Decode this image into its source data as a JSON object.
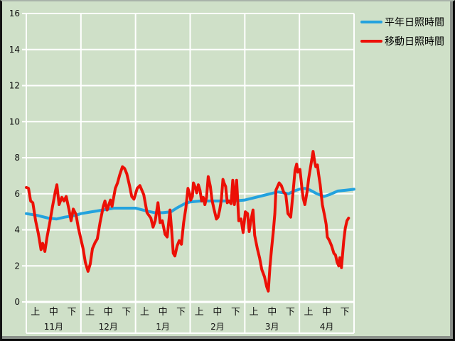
{
  "window_bg": "#cfe0c8",
  "legend": {
    "items": [
      {
        "label": "平年日照時間",
        "color": "#23a2de"
      },
      {
        "label": "移動日照時間",
        "color": "#ec1006"
      }
    ]
  },
  "chart_data": {
    "type": "line",
    "title": "",
    "xlabel": "",
    "ylabel": "",
    "ylim": [
      0,
      16
    ],
    "yticks": [
      0,
      2,
      4,
      6,
      8,
      10,
      12,
      14,
      16
    ],
    "grid": true,
    "gridline_color": "#ffffff",
    "legend_position": "top-right",
    "months": [
      "11月",
      "12月",
      "1月",
      "2月",
      "3月",
      "4月"
    ],
    "period_labels": [
      "上",
      "中",
      "下"
    ],
    "series": [
      {
        "name": "平年日照時間",
        "color": "#23a2de",
        "points": [
          [
            0.0,
            4.9
          ],
          [
            0.2,
            4.8
          ],
          [
            0.4,
            4.65
          ],
          [
            0.55,
            4.6
          ],
          [
            0.7,
            4.7
          ],
          [
            0.9,
            4.8
          ],
          [
            1.0,
            4.9
          ],
          [
            1.2,
            5.0
          ],
          [
            1.4,
            5.1
          ],
          [
            1.6,
            5.2
          ],
          [
            1.8,
            5.2
          ],
          [
            2.0,
            5.2
          ],
          [
            2.2,
            5.05
          ],
          [
            2.35,
            4.95
          ],
          [
            2.5,
            4.95
          ],
          [
            2.65,
            5.0
          ],
          [
            2.75,
            5.2
          ],
          [
            2.9,
            5.45
          ],
          [
            3.0,
            5.55
          ],
          [
            3.2,
            5.6
          ],
          [
            3.5,
            5.6
          ],
          [
            3.8,
            5.6
          ],
          [
            4.0,
            5.65
          ],
          [
            4.2,
            5.8
          ],
          [
            4.4,
            5.95
          ],
          [
            4.6,
            6.1
          ],
          [
            4.72,
            6.05
          ],
          [
            4.8,
            6.0
          ],
          [
            4.9,
            6.15
          ],
          [
            5.0,
            6.25
          ],
          [
            5.1,
            6.3
          ],
          [
            5.2,
            6.2
          ],
          [
            5.32,
            6.0
          ],
          [
            5.45,
            5.85
          ],
          [
            5.55,
            5.95
          ],
          [
            5.7,
            6.15
          ],
          [
            5.85,
            6.2
          ],
          [
            6.0,
            6.25
          ]
        ]
      },
      {
        "name": "移動日照時間",
        "color": "#ec1006",
        "points": [
          [
            0.0,
            6.35
          ],
          [
            0.04,
            6.3
          ],
          [
            0.08,
            5.6
          ],
          [
            0.12,
            5.5
          ],
          [
            0.17,
            4.5
          ],
          [
            0.22,
            3.8
          ],
          [
            0.27,
            2.9
          ],
          [
            0.3,
            3.25
          ],
          [
            0.34,
            2.8
          ],
          [
            0.38,
            3.6
          ],
          [
            0.43,
            4.4
          ],
          [
            0.48,
            5.3
          ],
          [
            0.53,
            6.1
          ],
          [
            0.56,
            6.5
          ],
          [
            0.6,
            5.4
          ],
          [
            0.65,
            5.8
          ],
          [
            0.69,
            5.6
          ],
          [
            0.73,
            5.85
          ],
          [
            0.78,
            5.15
          ],
          [
            0.82,
            4.5
          ],
          [
            0.86,
            5.15
          ],
          [
            0.91,
            4.85
          ],
          [
            0.95,
            4.15
          ],
          [
            0.99,
            3.6
          ],
          [
            1.04,
            2.95
          ],
          [
            1.08,
            2.2
          ],
          [
            1.13,
            1.7
          ],
          [
            1.17,
            2.1
          ],
          [
            1.21,
            2.95
          ],
          [
            1.26,
            3.3
          ],
          [
            1.3,
            3.5
          ],
          [
            1.35,
            4.4
          ],
          [
            1.41,
            5.3
          ],
          [
            1.44,
            5.6
          ],
          [
            1.48,
            5.1
          ],
          [
            1.54,
            5.65
          ],
          [
            1.57,
            5.3
          ],
          [
            1.63,
            6.3
          ],
          [
            1.67,
            6.6
          ],
          [
            1.71,
            7.05
          ],
          [
            1.76,
            7.5
          ],
          [
            1.8,
            7.4
          ],
          [
            1.84,
            7.1
          ],
          [
            1.89,
            6.45
          ],
          [
            1.93,
            5.85
          ],
          [
            1.97,
            5.7
          ],
          [
            2.03,
            6.3
          ],
          [
            2.08,
            6.45
          ],
          [
            2.15,
            5.95
          ],
          [
            2.21,
            4.95
          ],
          [
            2.28,
            4.65
          ],
          [
            2.32,
            4.15
          ],
          [
            2.36,
            4.5
          ],
          [
            2.41,
            5.5
          ],
          [
            2.45,
            4.4
          ],
          [
            2.49,
            4.5
          ],
          [
            2.54,
            3.75
          ],
          [
            2.58,
            3.6
          ],
          [
            2.63,
            5.1
          ],
          [
            2.66,
            4.0
          ],
          [
            2.69,
            2.7
          ],
          [
            2.72,
            2.55
          ],
          [
            2.76,
            3.1
          ],
          [
            2.8,
            3.4
          ],
          [
            2.84,
            3.2
          ],
          [
            2.88,
            4.4
          ],
          [
            2.92,
            5.2
          ],
          [
            2.96,
            6.3
          ],
          [
            2.99,
            6.0
          ],
          [
            3.01,
            5.65
          ],
          [
            3.04,
            5.85
          ],
          [
            3.06,
            6.6
          ],
          [
            3.1,
            6.3
          ],
          [
            3.12,
            6.05
          ],
          [
            3.15,
            6.5
          ],
          [
            3.18,
            6.2
          ],
          [
            3.21,
            5.6
          ],
          [
            3.24,
            5.8
          ],
          [
            3.27,
            5.4
          ],
          [
            3.3,
            5.8
          ],
          [
            3.33,
            6.95
          ],
          [
            3.37,
            6.4
          ],
          [
            3.4,
            5.65
          ],
          [
            3.44,
            5.1
          ],
          [
            3.48,
            4.6
          ],
          [
            3.51,
            4.7
          ],
          [
            3.54,
            5.1
          ],
          [
            3.57,
            5.65
          ],
          [
            3.6,
            6.8
          ],
          [
            3.62,
            6.6
          ],
          [
            3.65,
            6.4
          ],
          [
            3.68,
            5.5
          ],
          [
            3.71,
            5.6
          ],
          [
            3.75,
            5.45
          ],
          [
            3.78,
            6.75
          ],
          [
            3.81,
            5.4
          ],
          [
            3.85,
            6.75
          ],
          [
            3.89,
            4.5
          ],
          [
            3.93,
            4.6
          ],
          [
            3.97,
            3.85
          ],
          [
            4.01,
            5.0
          ],
          [
            4.05,
            4.9
          ],
          [
            4.08,
            3.9
          ],
          [
            4.11,
            4.5
          ],
          [
            4.15,
            5.1
          ],
          [
            4.18,
            3.7
          ],
          [
            4.23,
            2.95
          ],
          [
            4.27,
            2.45
          ],
          [
            4.31,
            1.8
          ],
          [
            4.36,
            1.4
          ],
          [
            4.4,
            0.85
          ],
          [
            4.43,
            0.6
          ],
          [
            4.46,
            1.95
          ],
          [
            4.49,
            2.95
          ],
          [
            4.52,
            3.85
          ],
          [
            4.55,
            4.9
          ],
          [
            4.57,
            6.2
          ],
          [
            4.6,
            6.4
          ],
          [
            4.63,
            6.6
          ],
          [
            4.67,
            6.45
          ],
          [
            4.71,
            6.1
          ],
          [
            4.75,
            5.95
          ],
          [
            4.79,
            4.9
          ],
          [
            4.84,
            4.7
          ],
          [
            4.88,
            5.95
          ],
          [
            4.92,
            7.3
          ],
          [
            4.95,
            7.65
          ],
          [
            4.97,
            7.2
          ],
          [
            5.01,
            7.35
          ],
          [
            5.05,
            6.2
          ],
          [
            5.07,
            5.75
          ],
          [
            5.1,
            5.4
          ],
          [
            5.14,
            6.1
          ],
          [
            5.17,
            6.85
          ],
          [
            5.21,
            7.6
          ],
          [
            5.25,
            8.35
          ],
          [
            5.28,
            7.75
          ],
          [
            5.3,
            7.5
          ],
          [
            5.33,
            7.6
          ],
          [
            5.35,
            7.1
          ],
          [
            5.38,
            6.5
          ],
          [
            5.42,
            5.4
          ],
          [
            5.46,
            4.8
          ],
          [
            5.49,
            4.3
          ],
          [
            5.51,
            3.6
          ],
          [
            5.55,
            3.4
          ],
          [
            5.59,
            3.1
          ],
          [
            5.63,
            2.7
          ],
          [
            5.66,
            2.6
          ],
          [
            5.69,
            2.2
          ],
          [
            5.72,
            2.0
          ],
          [
            5.74,
            2.45
          ],
          [
            5.77,
            1.9
          ],
          [
            5.81,
            3.35
          ],
          [
            5.84,
            4.1
          ],
          [
            5.87,
            4.5
          ],
          [
            5.9,
            4.65
          ]
        ]
      }
    ]
  }
}
